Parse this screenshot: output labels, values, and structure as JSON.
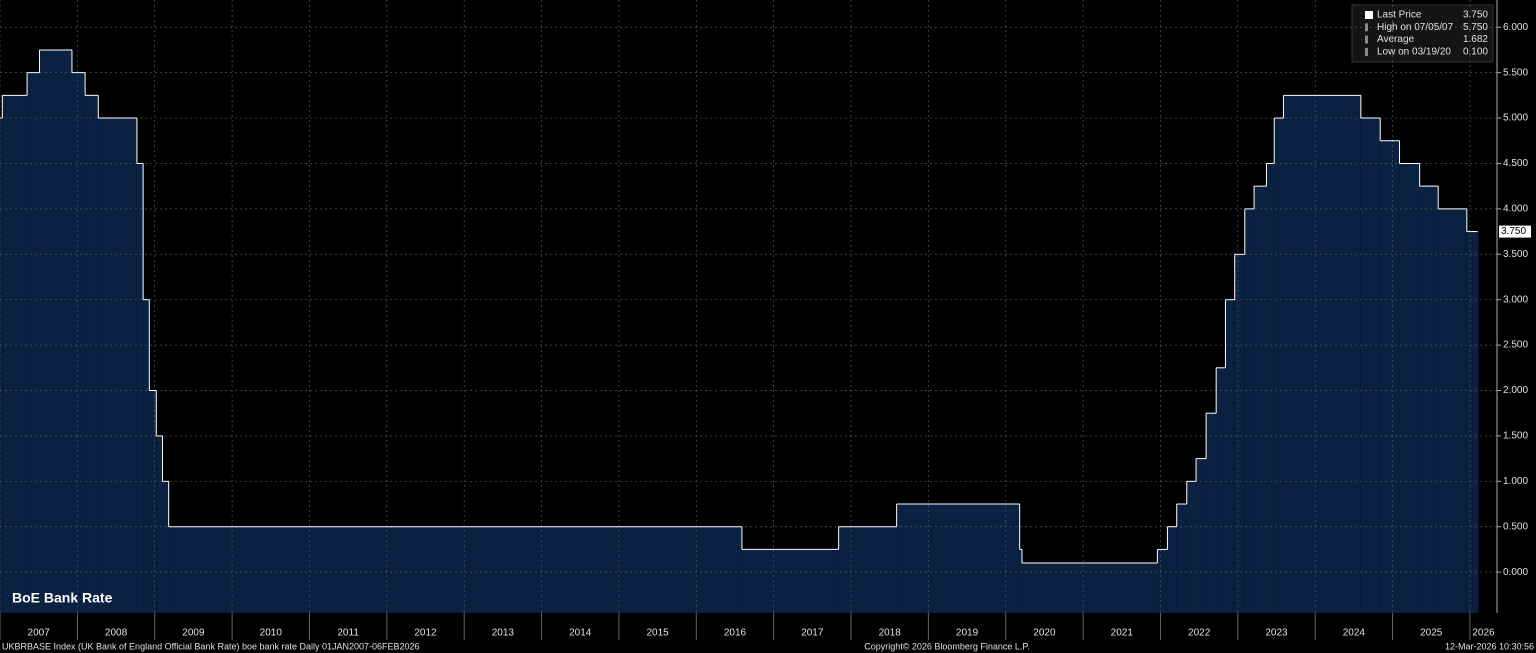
{
  "chart_data": {
    "type": "step-area",
    "title": "BoE Bank Rate",
    "x": [
      2007.0,
      2007.03,
      2007.35,
      2007.51,
      2007.93,
      2008.1,
      2008.27,
      2008.77,
      2008.85,
      2008.93,
      2009.02,
      2009.1,
      2009.18,
      2016.59,
      2017.84,
      2018.59,
      2020.18,
      2020.21,
      2021.96,
      2022.09,
      2022.21,
      2022.34,
      2022.46,
      2022.59,
      2022.72,
      2022.84,
      2022.96,
      2023.09,
      2023.21,
      2023.37,
      2023.47,
      2023.59,
      2024.59,
      2024.84,
      2025.09,
      2025.35,
      2025.59,
      2025.96,
      2026.1
    ],
    "values": [
      5.0,
      5.25,
      5.5,
      5.75,
      5.5,
      5.25,
      5.0,
      4.5,
      3.0,
      2.0,
      1.5,
      1.0,
      0.5,
      0.25,
      0.5,
      0.75,
      0.25,
      0.1,
      0.25,
      0.5,
      0.75,
      1.0,
      1.25,
      1.75,
      2.25,
      3.0,
      3.5,
      4.0,
      4.25,
      4.5,
      5.0,
      5.25,
      5.0,
      4.75,
      4.5,
      4.25,
      4.0,
      3.75,
      3.75
    ],
    "color": "#0a2142",
    "line_color": "#ffffff",
    "xlim": [
      2007,
      2026.35
    ],
    "ylim": [
      -0.45,
      6.3
    ],
    "xticks": [
      2007,
      2008,
      2009,
      2010,
      2011,
      2012,
      2013,
      2014,
      2015,
      2016,
      2017,
      2018,
      2019,
      2020,
      2021,
      2022,
      2023,
      2024,
      2025,
      2026
    ],
    "yticks": [
      {
        "value": 0,
        "label": "0.000"
      },
      {
        "value": 0.5,
        "label": "0.500"
      },
      {
        "value": 1,
        "label": "1.000"
      },
      {
        "value": 1.5,
        "label": "1.500"
      },
      {
        "value": 2,
        "label": "2.000"
      },
      {
        "value": 2.5,
        "label": "2.500"
      },
      {
        "value": 3,
        "label": "3.000"
      },
      {
        "value": 3.5,
        "label": "3.500"
      },
      {
        "value": 4,
        "label": "4.000"
      },
      {
        "value": 4.5,
        "label": "4.500"
      },
      {
        "value": 5,
        "label": "5.000"
      },
      {
        "value": 5.5,
        "label": "5.500"
      },
      {
        "value": 6,
        "label": "6.000"
      }
    ],
    "grid": true,
    "stats": {
      "labels": [
        "Last Price",
        "High on 07/05/07",
        "Average",
        "Low on 03/19/20"
      ],
      "values": [
        3.75,
        5.75,
        1.682,
        0.1
      ],
      "value_labels": [
        "3.750",
        "5.750",
        "1.682",
        "0.100"
      ]
    }
  },
  "footer": {
    "left": "UKBRBASE Index (UK Bank of England Official Bank Rate) boe bank rate Daily 01JAN2007-06FEB2026",
    "center": "Copyright© 2026 Bloomberg Finance L.P.",
    "right": "12-Mar-2026 10:30:56"
  }
}
